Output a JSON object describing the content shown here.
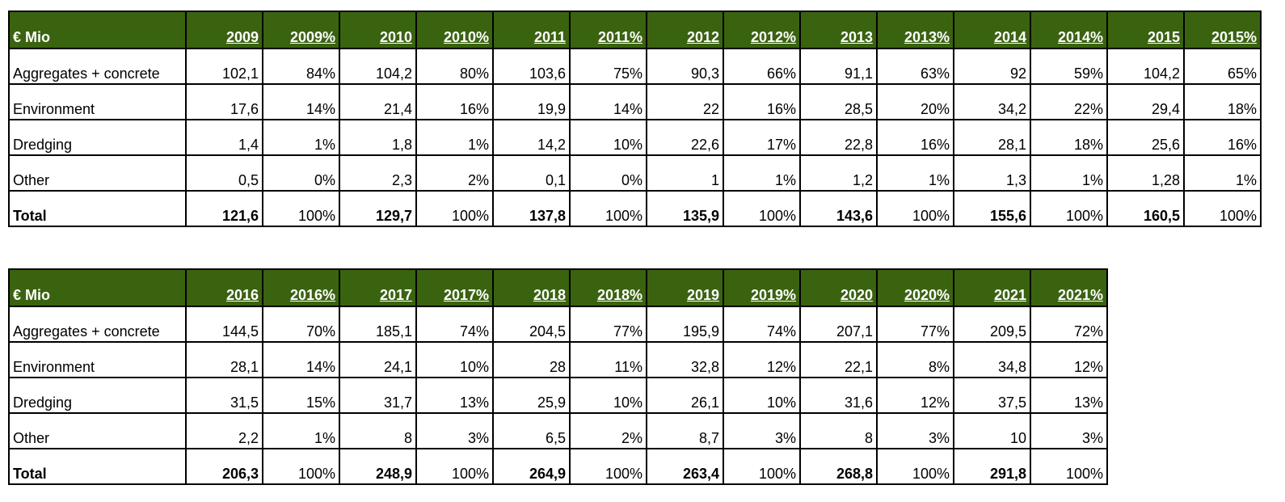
{
  "tables": [
    {
      "corner": "€ Mio",
      "headers": [
        "2009",
        "2009%",
        "2010",
        "2010%",
        "2011",
        "2011%",
        "2012",
        "2012%",
        "2013",
        "2013%",
        "2014",
        "2014%",
        "2015",
        "2015%"
      ],
      "rows": [
        {
          "label": "Aggregates + concrete",
          "cells": [
            "102,1",
            "84%",
            "104,2",
            "80%",
            "103,6",
            "75%",
            "90,3",
            "66%",
            "91,1",
            "63%",
            "92",
            "59%",
            "104,2",
            "65%"
          ]
        },
        {
          "label": "Environment",
          "cells": [
            "17,6",
            "14%",
            "21,4",
            "16%",
            "19,9",
            "14%",
            "22",
            "16%",
            "28,5",
            "20%",
            "34,2",
            "22%",
            "29,4",
            "18%"
          ]
        },
        {
          "label": "Dredging",
          "cells": [
            "1,4",
            "1%",
            "1,8",
            "1%",
            "14,2",
            "10%",
            "22,6",
            "17%",
            "22,8",
            "16%",
            "28,1",
            "18%",
            "25,6",
            "16%"
          ]
        },
        {
          "label": "Other",
          "cells": [
            "0,5",
            "0%",
            "2,3",
            "2%",
            "0,1",
            "0%",
            "1",
            "1%",
            "1,2",
            "1%",
            "1,3",
            "1%",
            "1,28",
            "1%"
          ]
        },
        {
          "label": "Total",
          "cells": [
            "121,6",
            "100%",
            "129,7",
            "100%",
            "137,8",
            "100%",
            "135,9",
            "100%",
            "143,6",
            "100%",
            "155,6",
            "100%",
            "160,5",
            "100%"
          ]
        }
      ]
    },
    {
      "corner": "€ Mio",
      "headers": [
        "2016",
        "2016%",
        "2017",
        "2017%",
        "2018",
        "2018%",
        "2019",
        "2019%",
        "2020",
        "2020%",
        "2021",
        "2021%"
      ],
      "rows": [
        {
          "label": "Aggregates + concrete",
          "cells": [
            "144,5",
            "70%",
            "185,1",
            "74%",
            "204,5",
            "77%",
            "195,9",
            "74%",
            "207,1",
            "77%",
            "209,5",
            "72%"
          ]
        },
        {
          "label": "Environment",
          "cells": [
            "28,1",
            "14%",
            "24,1",
            "10%",
            "28",
            "11%",
            "32,8",
            "12%",
            "22,1",
            "8%",
            "34,8",
            "12%"
          ]
        },
        {
          "label": "Dredging",
          "cells": [
            "31,5",
            "15%",
            "31,7",
            "13%",
            "25,9",
            "10%",
            "26,1",
            "10%",
            "31,6",
            "12%",
            "37,5",
            "13%"
          ]
        },
        {
          "label": "Other",
          "cells": [
            "2,2",
            "1%",
            "8",
            "3%",
            "6,5",
            "2%",
            "8,7",
            "3%",
            "8",
            "3%",
            "10",
            "3%"
          ]
        },
        {
          "label": "Total",
          "cells": [
            "206,3",
            "100%",
            "248,9",
            "100%",
            "264,9",
            "100%",
            "263,4",
            "100%",
            "268,8",
            "100%",
            "291,8",
            "100%"
          ]
        }
      ]
    }
  ]
}
